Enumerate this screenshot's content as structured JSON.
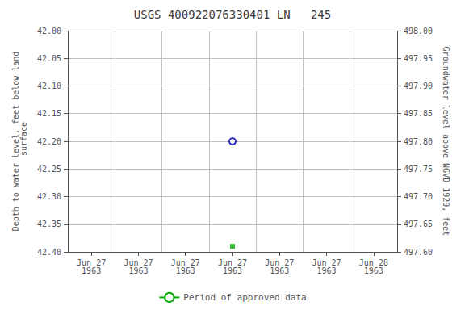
{
  "chart_data": {
    "type": "scatter",
    "title": "USGS 400922076330401 LN   245",
    "y_label": "Depth to water level, feet below land\n surface",
    "y2_label": "Groundwater level above NGVD 1929, feet",
    "categories": [
      "Jun 27\n1963",
      "Jun 27\n1963",
      "Jun 27\n1963",
      "Jun 27\n1963",
      "Jun 27\n1963",
      "Jun 27\n1963",
      "Jun 28\n1963"
    ],
    "series": [
      {
        "color": "#0000bb",
        "marker": "circle_open",
        "values": [
          null,
          null,
          null,
          42.2,
          null,
          null,
          null
        ]
      },
      {
        "color": "#00aa00",
        "marker": "square",
        "values": [
          null,
          null,
          null,
          42.39,
          null,
          null,
          null
        ]
      },
      {
        "name": "Period of approved data",
        "type": "line",
        "color": "#00aa00",
        "values": [
          null,
          null,
          null,
          null,
          null,
          null,
          null
        ]
      }
    ],
    "ylim": [
      42.4,
      42.0
    ],
    "yticks": [
      {
        "value": 42.0,
        "label": "42.00"
      },
      {
        "value": 42.05,
        "label": "42.05"
      },
      {
        "value": 42.1,
        "label": "42.10"
      },
      {
        "value": 42.15,
        "label": "42.15"
      },
      {
        "value": 42.2,
        "label": "42.20"
      },
      {
        "value": 42.25,
        "label": "42.25"
      },
      {
        "value": 42.3,
        "label": "42.30"
      },
      {
        "value": 42.35,
        "label": "42.35"
      },
      {
        "value": 42.4,
        "label": "42.40"
      }
    ],
    "y2lim": [
      497.6,
      498.0
    ],
    "y2ticks": [
      {
        "value": 498.0,
        "label": "498.00"
      },
      {
        "value": 497.95,
        "label": "497.95"
      },
      {
        "value": 497.9,
        "label": "497.90"
      },
      {
        "value": 497.85,
        "label": "497.85"
      },
      {
        "value": 497.8,
        "label": "497.80"
      },
      {
        "value": 497.75,
        "label": "497.75"
      },
      {
        "value": 497.7,
        "label": "497.70"
      },
      {
        "value": 497.65,
        "label": "497.65"
      },
      {
        "value": 497.6,
        "label": "497.60"
      }
    ],
    "grid": true,
    "legend": "bottom"
  }
}
